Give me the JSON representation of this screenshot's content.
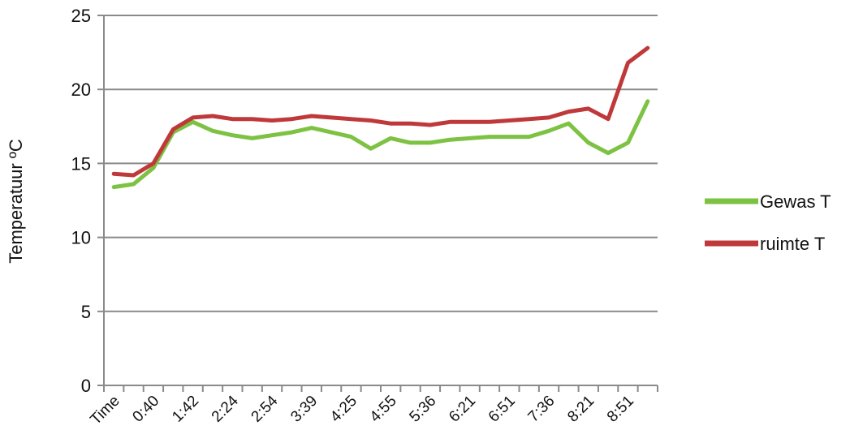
{
  "chart_data": {
    "type": "line",
    "title": "",
    "xlabel": "",
    "ylabel": "Temperatuur ºC",
    "ylim": [
      0,
      25
    ],
    "yticks": [
      0,
      5,
      10,
      15,
      20,
      25
    ],
    "grid": "horizontal",
    "legend_position": "right",
    "categories": [
      "Time",
      "",
      "0:40",
      "",
      "1:42",
      "",
      "2:24",
      "",
      "2:54",
      "",
      "3:39",
      "",
      "4:25",
      "",
      "4:55",
      "",
      "5:36",
      "",
      "6:21",
      "",
      "6:51",
      "",
      "7:36",
      "",
      "8:21",
      "",
      "8:51",
      ""
    ],
    "series": [
      {
        "name": "Gewas T",
        "color": "#7dc242",
        "values": [
          13.4,
          13.6,
          14.7,
          17.1,
          17.8,
          17.2,
          16.9,
          16.7,
          16.9,
          17.1,
          17.4,
          17.1,
          16.8,
          16.0,
          16.7,
          16.4,
          16.4,
          16.6,
          16.7,
          16.8,
          16.8,
          16.8,
          17.2,
          17.7,
          16.4,
          15.7,
          16.4,
          19.2
        ]
      },
      {
        "name": "ruimte T",
        "color": "#c0393a",
        "values": [
          14.3,
          14.2,
          15.0,
          17.3,
          18.1,
          18.2,
          18.0,
          18.0,
          17.9,
          18.0,
          18.2,
          18.1,
          18.0,
          17.9,
          17.7,
          17.7,
          17.6,
          17.8,
          17.8,
          17.8,
          17.9,
          18.0,
          18.1,
          18.5,
          18.7,
          18.0,
          21.8,
          22.8
        ]
      }
    ]
  }
}
